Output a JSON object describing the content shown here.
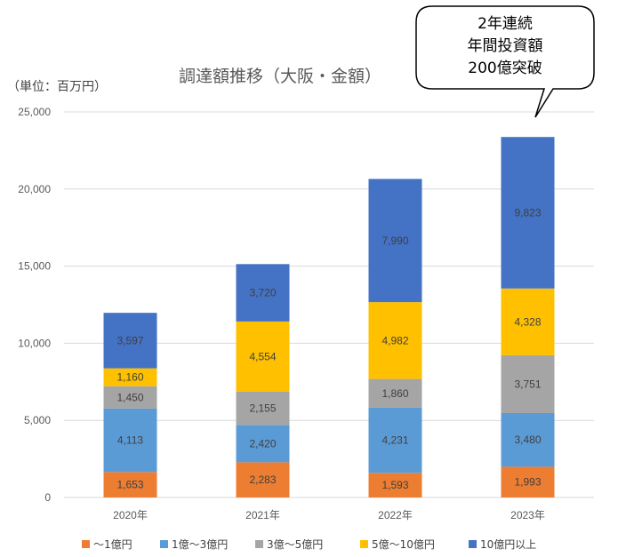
{
  "callout": {
    "lines": [
      "2年連続",
      "年間投資額",
      "200億突破"
    ]
  },
  "chart_data": {
    "type": "bar",
    "stacked": true,
    "title": "調達額推移（大阪・金額）",
    "unit_label": "（単位：百万円）",
    "categories": [
      "2020年",
      "2021年",
      "2022年",
      "2023年"
    ],
    "ylim": [
      0,
      25000
    ],
    "yticks": [
      0,
      5000,
      10000,
      15000,
      20000,
      25000
    ],
    "ytick_labels": [
      "0",
      "5,000",
      "10,000",
      "15,000",
      "20,000",
      "25,000"
    ],
    "grid": true,
    "legend_position": "bottom",
    "series": [
      {
        "name": "～1億円",
        "color": "#ED7D31",
        "values": [
          1653,
          2283,
          1593,
          1993
        ],
        "labels": [
          "1,653",
          "2,283",
          "1,593",
          "1,993"
        ]
      },
      {
        "name": "1億～3億円",
        "color": "#5B9BD5",
        "values": [
          4113,
          2420,
          4231,
          3480
        ],
        "labels": [
          "4,113",
          "2,420",
          "4,231",
          "3,480"
        ]
      },
      {
        "name": "3億～5億円",
        "color": "#A5A5A5",
        "values": [
          1450,
          2155,
          1860,
          3751
        ],
        "labels": [
          "1,450",
          "2,155",
          "1,860",
          "3,751"
        ]
      },
      {
        "name": "5億～10億円",
        "color": "#FFC000",
        "values": [
          1160,
          4554,
          4982,
          4328
        ],
        "labels": [
          "1,160",
          "4,554",
          "4,982",
          "4,328"
        ]
      },
      {
        "name": "10億円以上",
        "color": "#4472C4",
        "values": [
          3597,
          3720,
          7990,
          9823
        ],
        "labels": [
          "3,597",
          "3,720",
          "7,990",
          "9,823"
        ]
      }
    ]
  }
}
